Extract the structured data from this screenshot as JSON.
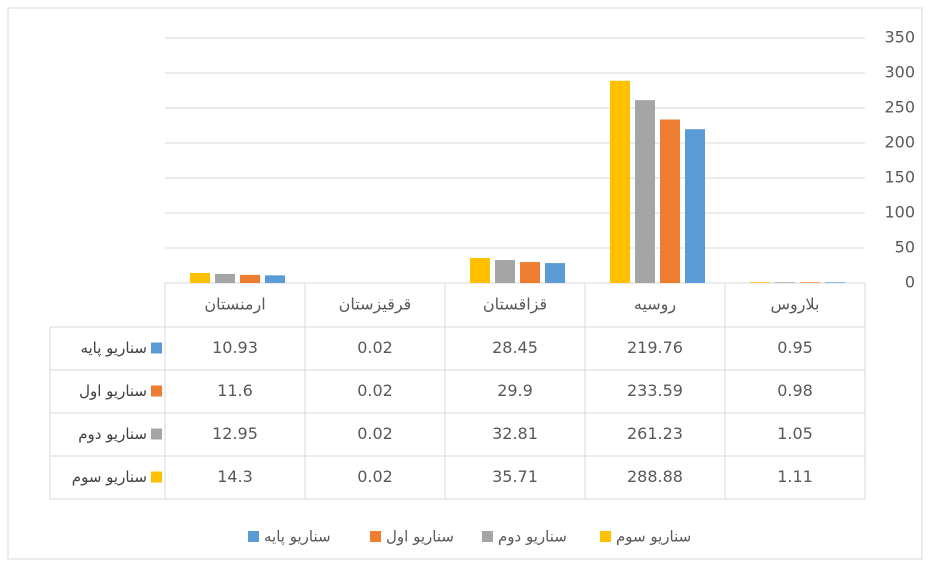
{
  "chart_data": {
    "type": "bar",
    "categories": [
      "ارمنستان",
      "قرقیزستان",
      "قزاقستان",
      "روسیه",
      "بلاروس"
    ],
    "series": [
      {
        "name": "سناریو پایه",
        "color": "#5b9bd5",
        "values": [
          10.93,
          0.02,
          28.45,
          219.76,
          0.95
        ]
      },
      {
        "name": "سناریو اول",
        "color": "#ed7d31",
        "values": [
          11.6,
          0.02,
          29.9,
          233.59,
          0.98
        ]
      },
      {
        "name": "سناریو دوم",
        "color": "#a5a5a5",
        "values": [
          12.95,
          0.02,
          32.81,
          261.23,
          1.05
        ]
      },
      {
        "name": "سناریو سوم",
        "color": "#ffc000",
        "values": [
          14.3,
          0.02,
          35.71,
          288.88,
          1.11
        ]
      }
    ],
    "ylim": [
      0,
      350
    ],
    "yticks": [
      0,
      50,
      100,
      150,
      200,
      250,
      300,
      350
    ],
    "grid": true,
    "data_table": true,
    "legend": "bottom"
  }
}
